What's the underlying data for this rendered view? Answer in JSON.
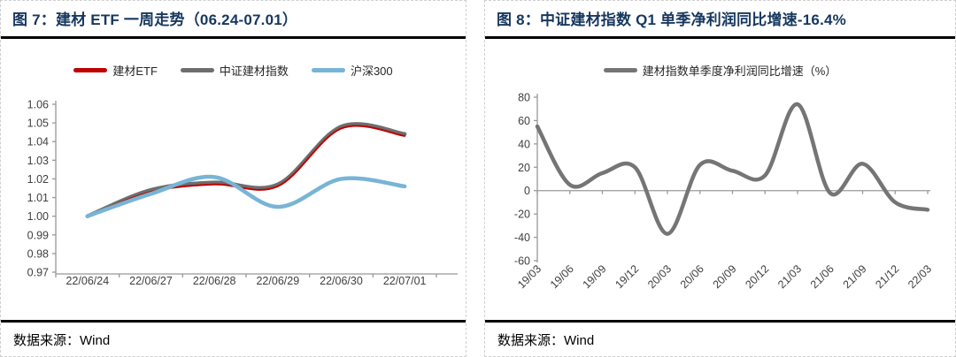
{
  "panels": [
    {
      "title": "图 7：建材 ETF 一周走势（06.24-07.01）",
      "source_label": "数据来源：",
      "source_value": "Wind"
    },
    {
      "title": "图 8：中证建材指数 Q1 单季净利润同比增速-16.4%",
      "source_label": "数据来源：",
      "source_value": "Wind"
    }
  ],
  "colors": {
    "title_navy": "#17375E",
    "etf_red": "#C00000",
    "index_gray": "#6E6E6E",
    "hs300_blue": "#78B4D6",
    "profit_gray": "#757575",
    "axis": "#999999",
    "tick_label": "#3F3F3F"
  },
  "chart_data": [
    {
      "type": "line",
      "title": "建材 ETF 一周走势（06.24-07.01）",
      "categories": [
        "22/06/24",
        "22/06/27",
        "22/06/28",
        "22/06/29",
        "22/06/30",
        "22/07/01"
      ],
      "series": [
        {
          "name": "中证建材指数",
          "color": "#6E6E6E",
          "stroke_width": 4.5,
          "values": [
            1.0,
            1.014,
            1.018,
            1.017,
            1.048,
            1.044
          ]
        },
        {
          "name": "建材ETF",
          "color": "#C00000",
          "stroke_width": 2,
          "values": [
            1.0,
            1.013,
            1.017,
            1.016,
            1.047,
            1.043
          ]
        },
        {
          "name": "沪深300",
          "color": "#78B4D6",
          "stroke_width": 4.5,
          "values": [
            1.0,
            1.012,
            1.021,
            1.005,
            1.02,
            1.016
          ]
        }
      ],
      "legend_order": [
        "建材ETF",
        "中证建材指数",
        "沪深300"
      ],
      "xlabel": "",
      "ylabel": "",
      "ylim": [
        0.97,
        1.06
      ],
      "ytick_step": 0.01,
      "y_decimals": 2,
      "x_type": "category-centered",
      "x_label_rotation": 0,
      "legend_position": "top",
      "grid": false,
      "smooth": true
    },
    {
      "type": "line",
      "title": "中证建材指数 Q1 单季净利润同比增速-16.4%",
      "categories": [
        "19/03",
        "19/06",
        "19/09",
        "19/12",
        "20/03",
        "20/06",
        "20/09",
        "20/12",
        "21/03",
        "21/06",
        "21/09",
        "21/12",
        "22/03"
      ],
      "series": [
        {
          "name": "建材指数单季度净利润同比增速（%）",
          "color": "#757575",
          "stroke_width": 4.5,
          "values": [
            55,
            5,
            15,
            20,
            -37,
            22,
            17,
            13,
            74,
            -2,
            23,
            -10,
            -16.4
          ]
        }
      ],
      "legend_order": [
        "建材指数单季度净利润同比增速（%）"
      ],
      "xlabel": "",
      "ylabel": "",
      "ylim": [
        -60,
        80
      ],
      "ytick_step": 20,
      "y_decimals": 0,
      "x_type": "point",
      "x_label_rotation": -45,
      "zero_axis": true,
      "legend_position": "top",
      "grid": false,
      "smooth": true
    }
  ]
}
